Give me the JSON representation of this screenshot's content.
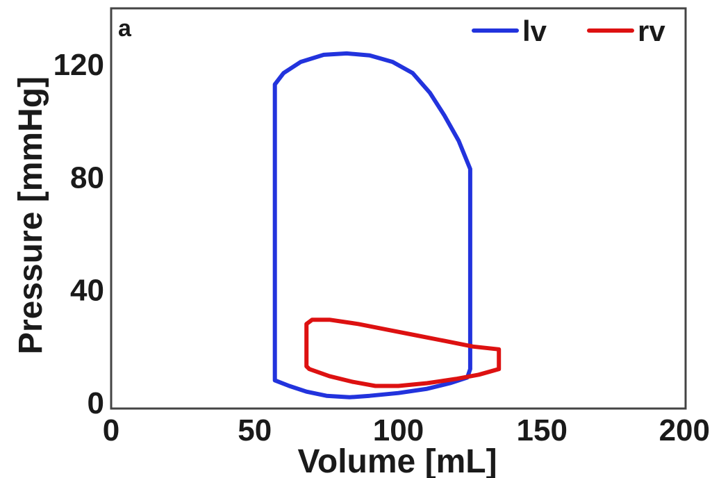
{
  "chart_data": {
    "type": "line",
    "panel_label": "a",
    "xlabel": "Volume [mL]",
    "ylabel": "Pressure [mmHg]",
    "xlim": [
      0,
      200
    ],
    "ylim": [
      -2,
      140
    ],
    "xticks": [
      0,
      50,
      100,
      150,
      200
    ],
    "yticks": [
      0,
      40,
      80,
      120
    ],
    "grid": false,
    "legend_position": "top-right",
    "series": [
      {
        "name": "lv",
        "color": "#2233dd",
        "points": [
          [
            57,
            113
          ],
          [
            60,
            117
          ],
          [
            66,
            121
          ],
          [
            74,
            123.5
          ],
          [
            82,
            124
          ],
          [
            90,
            123.3
          ],
          [
            98,
            121
          ],
          [
            105,
            117
          ],
          [
            111,
            110
          ],
          [
            116,
            102
          ],
          [
            121,
            93
          ],
          [
            125,
            83
          ],
          [
            125,
            12
          ],
          [
            124,
            9
          ],
          [
            118,
            7
          ],
          [
            110,
            5
          ],
          [
            100,
            3.5
          ],
          [
            90,
            2.5
          ],
          [
            83,
            2
          ],
          [
            75,
            2.5
          ],
          [
            68,
            4
          ],
          [
            62,
            6
          ],
          [
            57,
            8
          ],
          [
            57,
            113
          ]
        ]
      },
      {
        "name": "rv",
        "color": "#dd1111",
        "points": [
          [
            68,
            28
          ],
          [
            70,
            29.5
          ],
          [
            76,
            29.5
          ],
          [
            86,
            28
          ],
          [
            96,
            26
          ],
          [
            106,
            24
          ],
          [
            116,
            22
          ],
          [
            126,
            20
          ],
          [
            135,
            19
          ],
          [
            135,
            12
          ],
          [
            128,
            10
          ],
          [
            120,
            8.5
          ],
          [
            110,
            7
          ],
          [
            100,
            6
          ],
          [
            92,
            6
          ],
          [
            84,
            7.5
          ],
          [
            76,
            9.5
          ],
          [
            69,
            12
          ],
          [
            68,
            13
          ],
          [
            68,
            28
          ]
        ]
      }
    ]
  }
}
